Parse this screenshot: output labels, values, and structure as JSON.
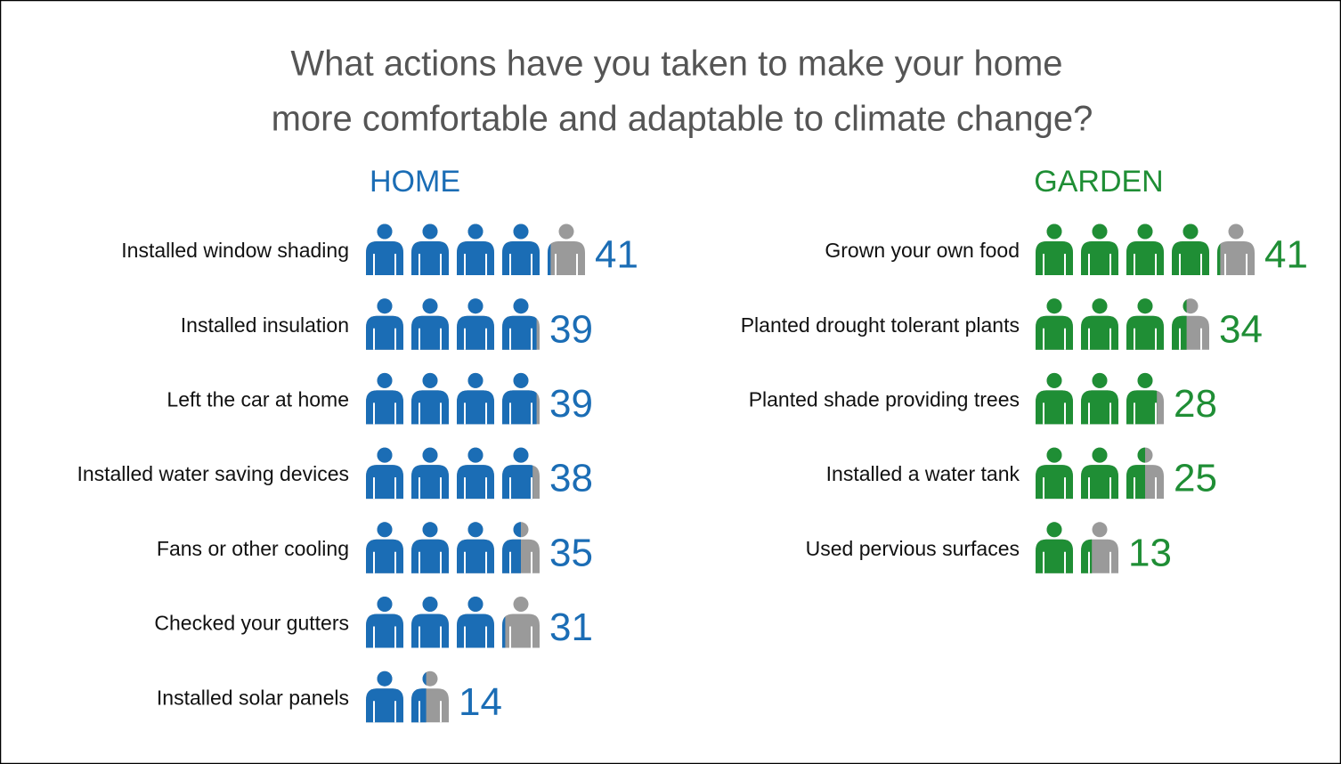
{
  "title": [
    "What actions have you taken to make your home",
    "more comfortable and adaptable to climate change?"
  ],
  "chart_data": [
    {
      "type": "pictogram",
      "title": "HOME",
      "color": "#1b6db5",
      "categories": [
        "Installed window shading",
        "Installed insulation",
        "Left the car at home",
        "Installed water saving devices",
        "Fans or other cooling",
        "Checked your gutters",
        "Installed solar panels"
      ],
      "values": [
        41,
        39,
        39,
        38,
        35,
        31,
        14
      ]
    },
    {
      "type": "pictogram",
      "title": "GARDEN",
      "color": "#1f8e35",
      "categories": [
        "Grown your own food",
        "Planted drought tolerant plants",
        "Planted shade providing trees",
        "Installed a water tank",
        "Used pervious surfaces"
      ],
      "values": [
        41,
        34,
        28,
        25,
        13
      ]
    }
  ]
}
